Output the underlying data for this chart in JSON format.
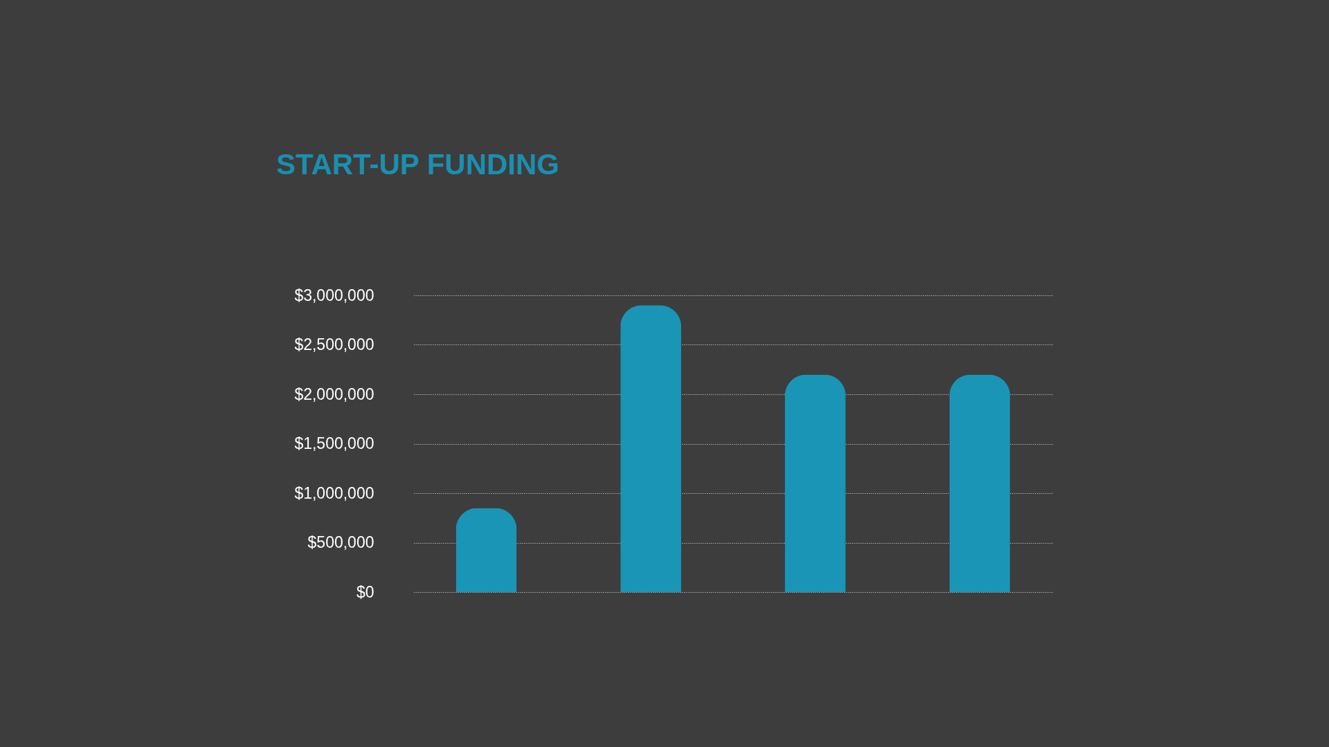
{
  "chart_data": {
    "type": "bar",
    "title": "START-UP FUNDING",
    "categories": [
      null,
      null,
      null,
      null
    ],
    "values": [
      850000,
      2900000,
      2200000,
      2200000
    ],
    "color": "#1b95b5",
    "ylim": [
      0,
      3000000
    ],
    "yticks": [
      {
        "value": 0,
        "label": "$0"
      },
      {
        "value": 500000,
        "label": "$500,000"
      },
      {
        "value": 1000000,
        "label": "$1,000,000"
      },
      {
        "value": 1500000,
        "label": "$1,500,000"
      },
      {
        "value": 2000000,
        "label": "$2,000,000"
      },
      {
        "value": 2500000,
        "label": "$2,500,000"
      },
      {
        "value": 3000000,
        "label": "$3,000,000"
      }
    ],
    "grid": "y",
    "tick_labels": "y"
  }
}
